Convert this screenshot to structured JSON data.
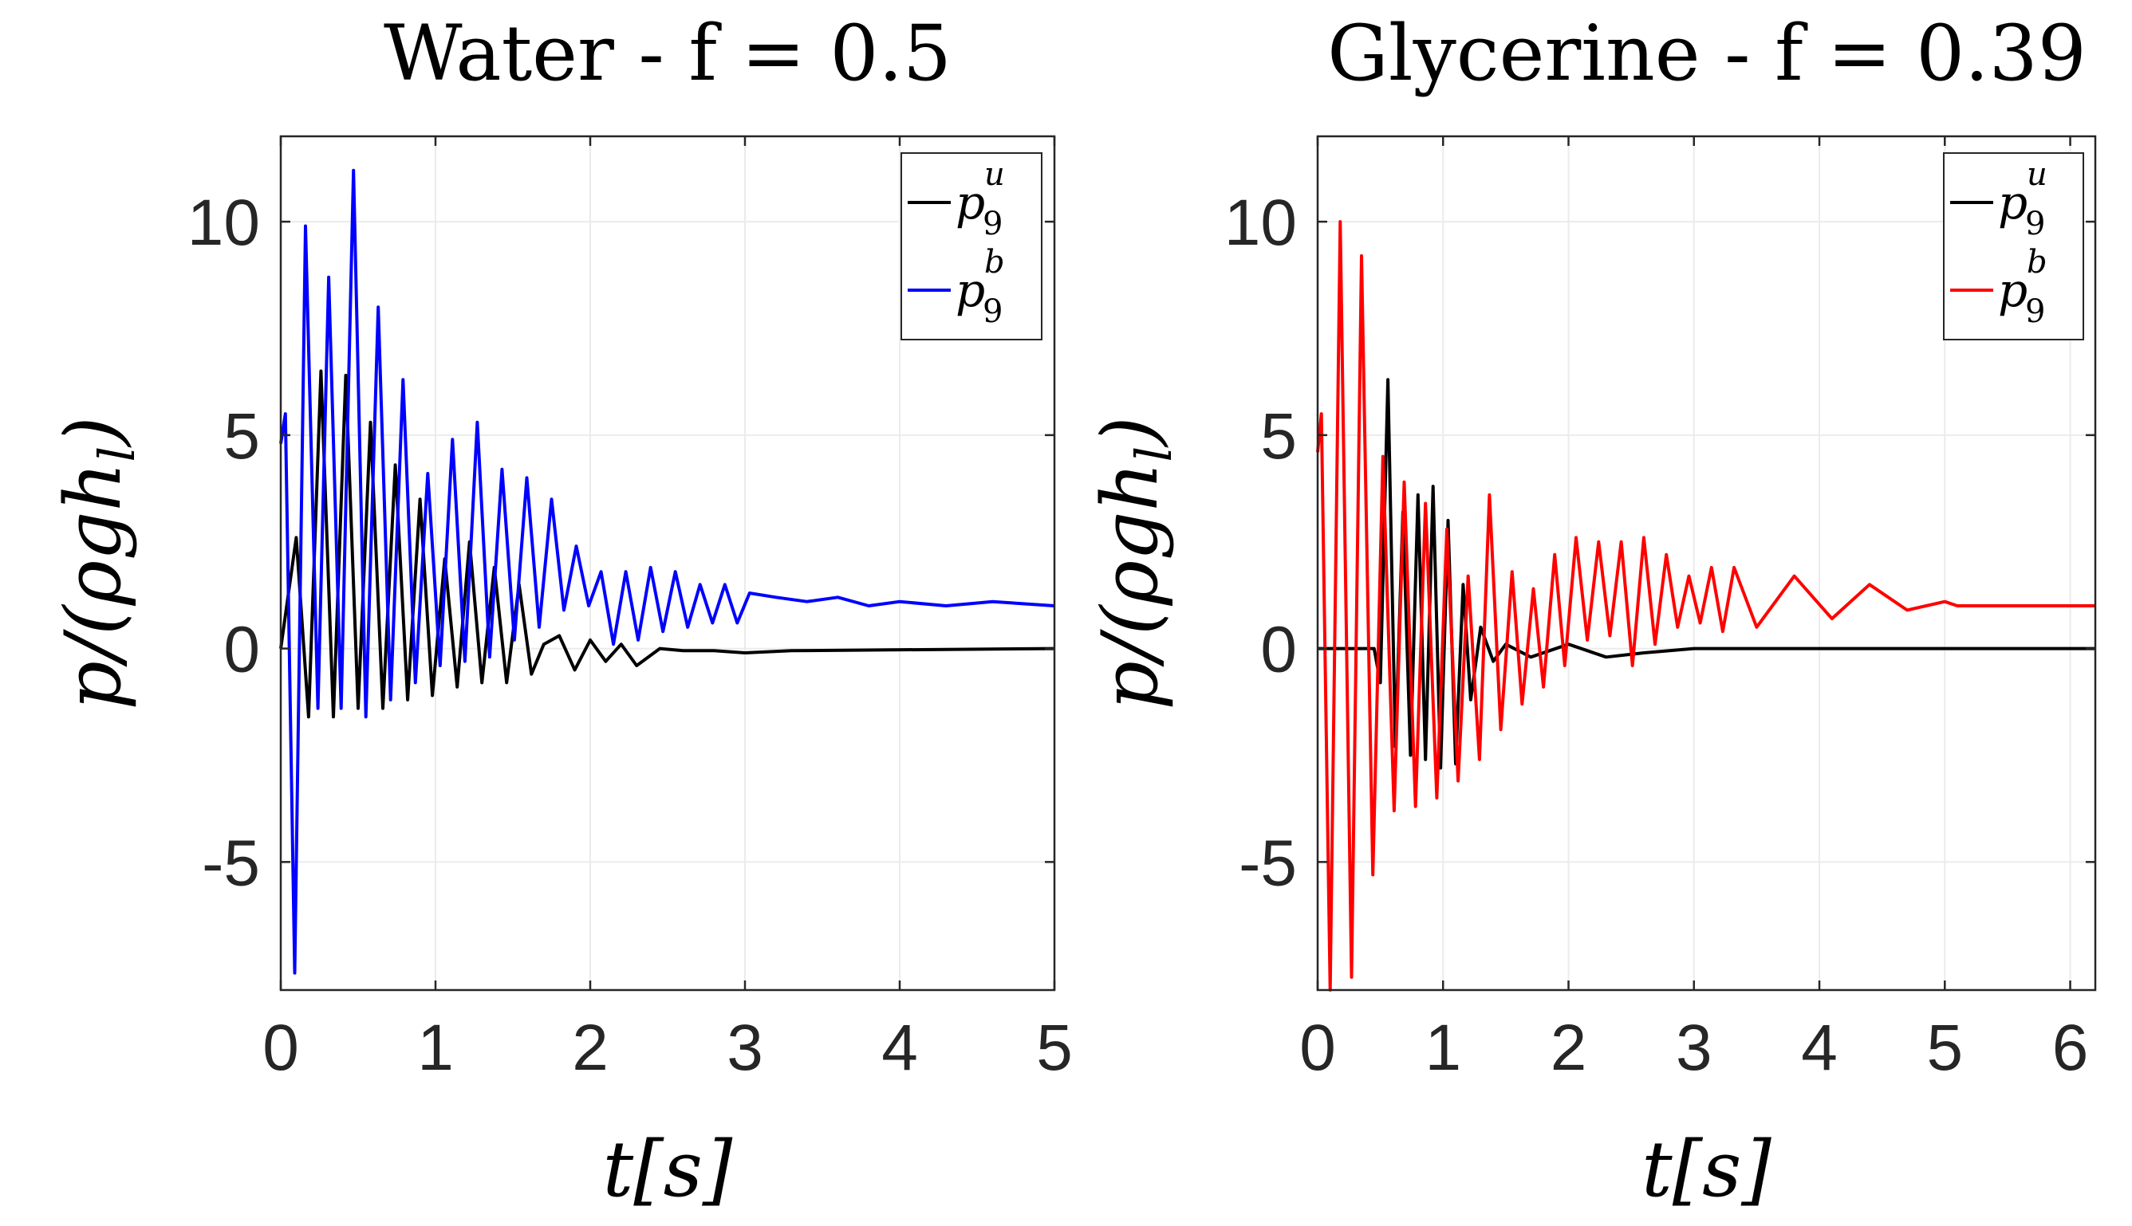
{
  "colors": {
    "black": "#000000",
    "blue": "#0000ff",
    "red": "#ff0000",
    "grid": "#ebebeb"
  },
  "chart_data": [
    {
      "type": "line",
      "title": "Water - f = 0.5",
      "xlabel": "t[s]",
      "ylabel": "p/(ρgh_l)",
      "xlim": [
        0,
        5
      ],
      "ylim": [
        -8,
        12
      ],
      "xticks": [
        "0",
        "1",
        "2",
        "3",
        "4",
        "5"
      ],
      "yticks": [
        "-5",
        "0",
        "5",
        "10"
      ],
      "grid": true,
      "legend_position": "top-right",
      "series": [
        {
          "name": "p_9^u",
          "base": "p",
          "sub": "9",
          "sup": "u",
          "color": "#000000",
          "x": [
            0,
            0.1,
            0.18,
            0.26,
            0.34,
            0.42,
            0.5,
            0.58,
            0.66,
            0.74,
            0.82,
            0.9,
            0.98,
            1.06,
            1.14,
            1.22,
            1.3,
            1.38,
            1.46,
            1.54,
            1.62,
            1.7,
            1.8,
            1.9,
            2.0,
            2.1,
            2.2,
            2.3,
            2.45,
            2.6,
            2.8,
            3.0,
            3.3,
            5.0
          ],
          "y": [
            0,
            2.6,
            -1.6,
            6.5,
            -1.6,
            6.4,
            -1.4,
            5.3,
            -1.4,
            4.3,
            -1.2,
            3.5,
            -1.1,
            2.1,
            -0.9,
            2.5,
            -0.8,
            1.9,
            -0.8,
            1.5,
            -0.6,
            0.1,
            0.3,
            -0.5,
            0.2,
            -0.3,
            0.1,
            -0.4,
            0.0,
            -0.05,
            -0.05,
            -0.1,
            -0.05,
            0.0
          ]
        },
        {
          "name": "p_9^b",
          "base": "p",
          "sub": "9",
          "sup": "b",
          "color": "#0000ff",
          "x": [
            0,
            0.03,
            0.09,
            0.16,
            0.24,
            0.31,
            0.39,
            0.47,
            0.55,
            0.63,
            0.71,
            0.79,
            0.87,
            0.95,
            1.03,
            1.11,
            1.19,
            1.27,
            1.35,
            1.43,
            1.51,
            1.59,
            1.67,
            1.75,
            1.83,
            1.91,
            1.99,
            2.07,
            2.15,
            2.23,
            2.31,
            2.39,
            2.47,
            2.55,
            2.63,
            2.71,
            2.79,
            2.87,
            2.95,
            3.03,
            3.2,
            3.4,
            3.6,
            3.8,
            4.0,
            4.3,
            4.6,
            5.0
          ],
          "y": [
            4.8,
            5.5,
            -7.6,
            9.9,
            -1.4,
            8.7,
            -1.4,
            11.2,
            -1.6,
            8.0,
            -1.2,
            6.3,
            -0.8,
            4.1,
            -0.4,
            4.9,
            -0.3,
            5.3,
            -0.2,
            4.2,
            0.2,
            4.0,
            0.5,
            3.5,
            0.9,
            2.4,
            1.0,
            1.8,
            0.1,
            1.8,
            0.2,
            1.9,
            0.4,
            1.8,
            0.5,
            1.5,
            0.6,
            1.5,
            0.6,
            1.3,
            1.2,
            1.1,
            1.2,
            1.0,
            1.1,
            1.0,
            1.1,
            1.0
          ]
        }
      ]
    },
    {
      "type": "line",
      "title": "Glycerine - f = 0.39",
      "xlabel": "t[s]",
      "ylabel": "p/(ρgh_l)",
      "xlim": [
        0,
        6.2
      ],
      "ylim": [
        -8,
        12
      ],
      "xticks": [
        "0",
        "1",
        "2",
        "3",
        "4",
        "5",
        "6"
      ],
      "yticks": [
        "-5",
        "0",
        "5",
        "10"
      ],
      "grid": true,
      "legend_position": "top-right",
      "series": [
        {
          "name": "p_9^u",
          "base": "p",
          "sub": "9",
          "sup": "u",
          "color": "#000000",
          "x": [
            0,
            0.45,
            0.5,
            0.56,
            0.62,
            0.68,
            0.74,
            0.8,
            0.86,
            0.92,
            0.98,
            1.04,
            1.1,
            1.16,
            1.22,
            1.3,
            1.4,
            1.5,
            1.7,
            2.0,
            2.3,
            2.6,
            3.0,
            3.6,
            6.2
          ],
          "y": [
            0,
            0,
            -0.8,
            6.3,
            -2.3,
            3.2,
            -2.5,
            3.6,
            -2.6,
            3.8,
            -2.8,
            3.0,
            -2.7,
            1.5,
            -1.2,
            0.5,
            -0.3,
            0.1,
            -0.2,
            0.1,
            -0.2,
            -0.1,
            0.0,
            0.0,
            0.0
          ]
        },
        {
          "name": "p_9^b",
          "base": "p",
          "sub": "9",
          "sup": "b",
          "color": "#ff0000",
          "x": [
            0,
            0.03,
            0.1,
            0.18,
            0.27,
            0.35,
            0.44,
            0.52,
            0.61,
            0.69,
            0.78,
            0.86,
            0.95,
            1.03,
            1.12,
            1.2,
            1.29,
            1.37,
            1.46,
            1.55,
            1.63,
            1.72,
            1.8,
            1.89,
            1.97,
            2.06,
            2.15,
            2.24,
            2.33,
            2.42,
            2.51,
            2.6,
            2.69,
            2.78,
            2.87,
            2.96,
            3.05,
            3.14,
            3.23,
            3.32,
            3.5,
            3.8,
            4.1,
            4.4,
            4.7,
            5.0,
            5.1,
            6.2
          ],
          "y": [
            4.6,
            5.5,
            -8.0,
            10.0,
            -7.7,
            9.2,
            -5.3,
            4.5,
            -3.8,
            3.9,
            -3.7,
            3.4,
            -3.5,
            2.8,
            -3.1,
            1.7,
            -2.6,
            3.6,
            -1.9,
            1.8,
            -1.3,
            1.4,
            -0.9,
            2.2,
            -0.4,
            2.6,
            0.2,
            2.5,
            0.3,
            2.5,
            -0.4,
            2.6,
            0.1,
            2.2,
            0.5,
            1.7,
            0.6,
            1.9,
            0.4,
            1.9,
            0.5,
            1.7,
            0.7,
            1.5,
            0.9,
            1.1,
            1.0,
            1.0
          ]
        }
      ]
    }
  ]
}
